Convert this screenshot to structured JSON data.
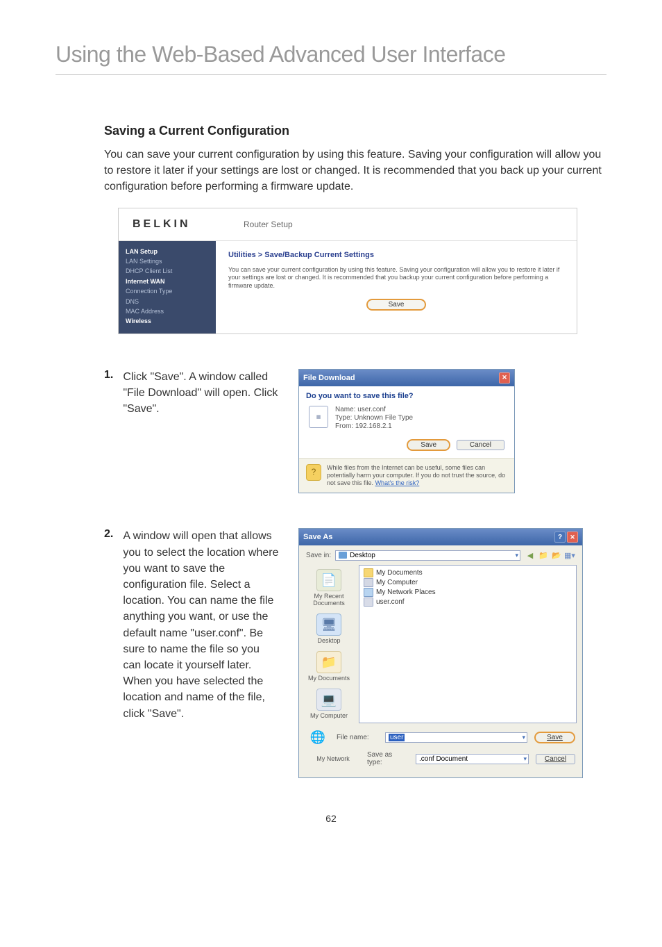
{
  "page": {
    "title": "Using the Web-Based Advanced User Interface",
    "section_heading": "Saving a Current Configuration",
    "intro": "You can save your current configuration by using this feature. Saving your configuration will allow you to restore it later if your settings are lost or changed. It is recommended that you back up your current configuration before performing a firmware update.",
    "page_number": "62"
  },
  "screenshot1": {
    "logo": "BELKIN",
    "setup_title": "Router Setup",
    "sidebar": {
      "group1": "LAN Setup",
      "item1a": "LAN Settings",
      "item1b": "DHCP Client List",
      "group2": "Internet WAN",
      "item2a": "Connection Type",
      "item2b": "DNS",
      "item2c": "MAC Address",
      "group3": "Wireless"
    },
    "util_title": "Utilities > Save/Backup Current Settings",
    "util_desc": "You can save your current configuration by using this feature. Saving your configuration will allow you to restore it later if your settings are lost or changed. It is recommended that you backup your current configuration before performing a firmware update.",
    "save_btn": "Save"
  },
  "step1": {
    "num": "1.",
    "text": "Click \"Save\". A window called \"File Download\" will open. Click \"Save\"."
  },
  "file_download": {
    "title": "File Download",
    "question": "Do you want to save this file?",
    "name_label": "Name:",
    "name_value": "user.conf",
    "type_label": "Type:",
    "type_value": "Unknown File Type",
    "from_label": "From:",
    "from_value": "192.168.2.1",
    "save": "Save",
    "cancel": "Cancel",
    "warning": "While files from the Internet can be useful, some files can potentially harm your computer. If you do not trust the source, do not save this file.",
    "risk_link": "What's the risk?"
  },
  "step2": {
    "num": "2.",
    "text": "A window will open that allows you to select the location where you want to save the configuration file. Select a location. You can name the file anything you want, or use the default name \"user.conf\". Be sure to name the file so you can locate it yourself later. When you have selected the location and name of the file, click \"Save\"."
  },
  "saveas": {
    "title": "Save As",
    "savein_label": "Save in:",
    "savein_value": "Desktop",
    "places": {
      "recent": "My Recent Documents",
      "desktop": "Desktop",
      "mydocs": "My Documents",
      "mycomp": "My Computer",
      "mynet": "My Network"
    },
    "files": {
      "f1": "My Documents",
      "f2": "My Computer",
      "f3": "My Network Places",
      "f4": "user.conf"
    },
    "filename_label": "File name:",
    "filename_value": "user",
    "saveastype_label": "Save as type:",
    "saveastype_value": ".conf Document",
    "save_btn": "Save",
    "cancel_btn": "Cancel"
  }
}
